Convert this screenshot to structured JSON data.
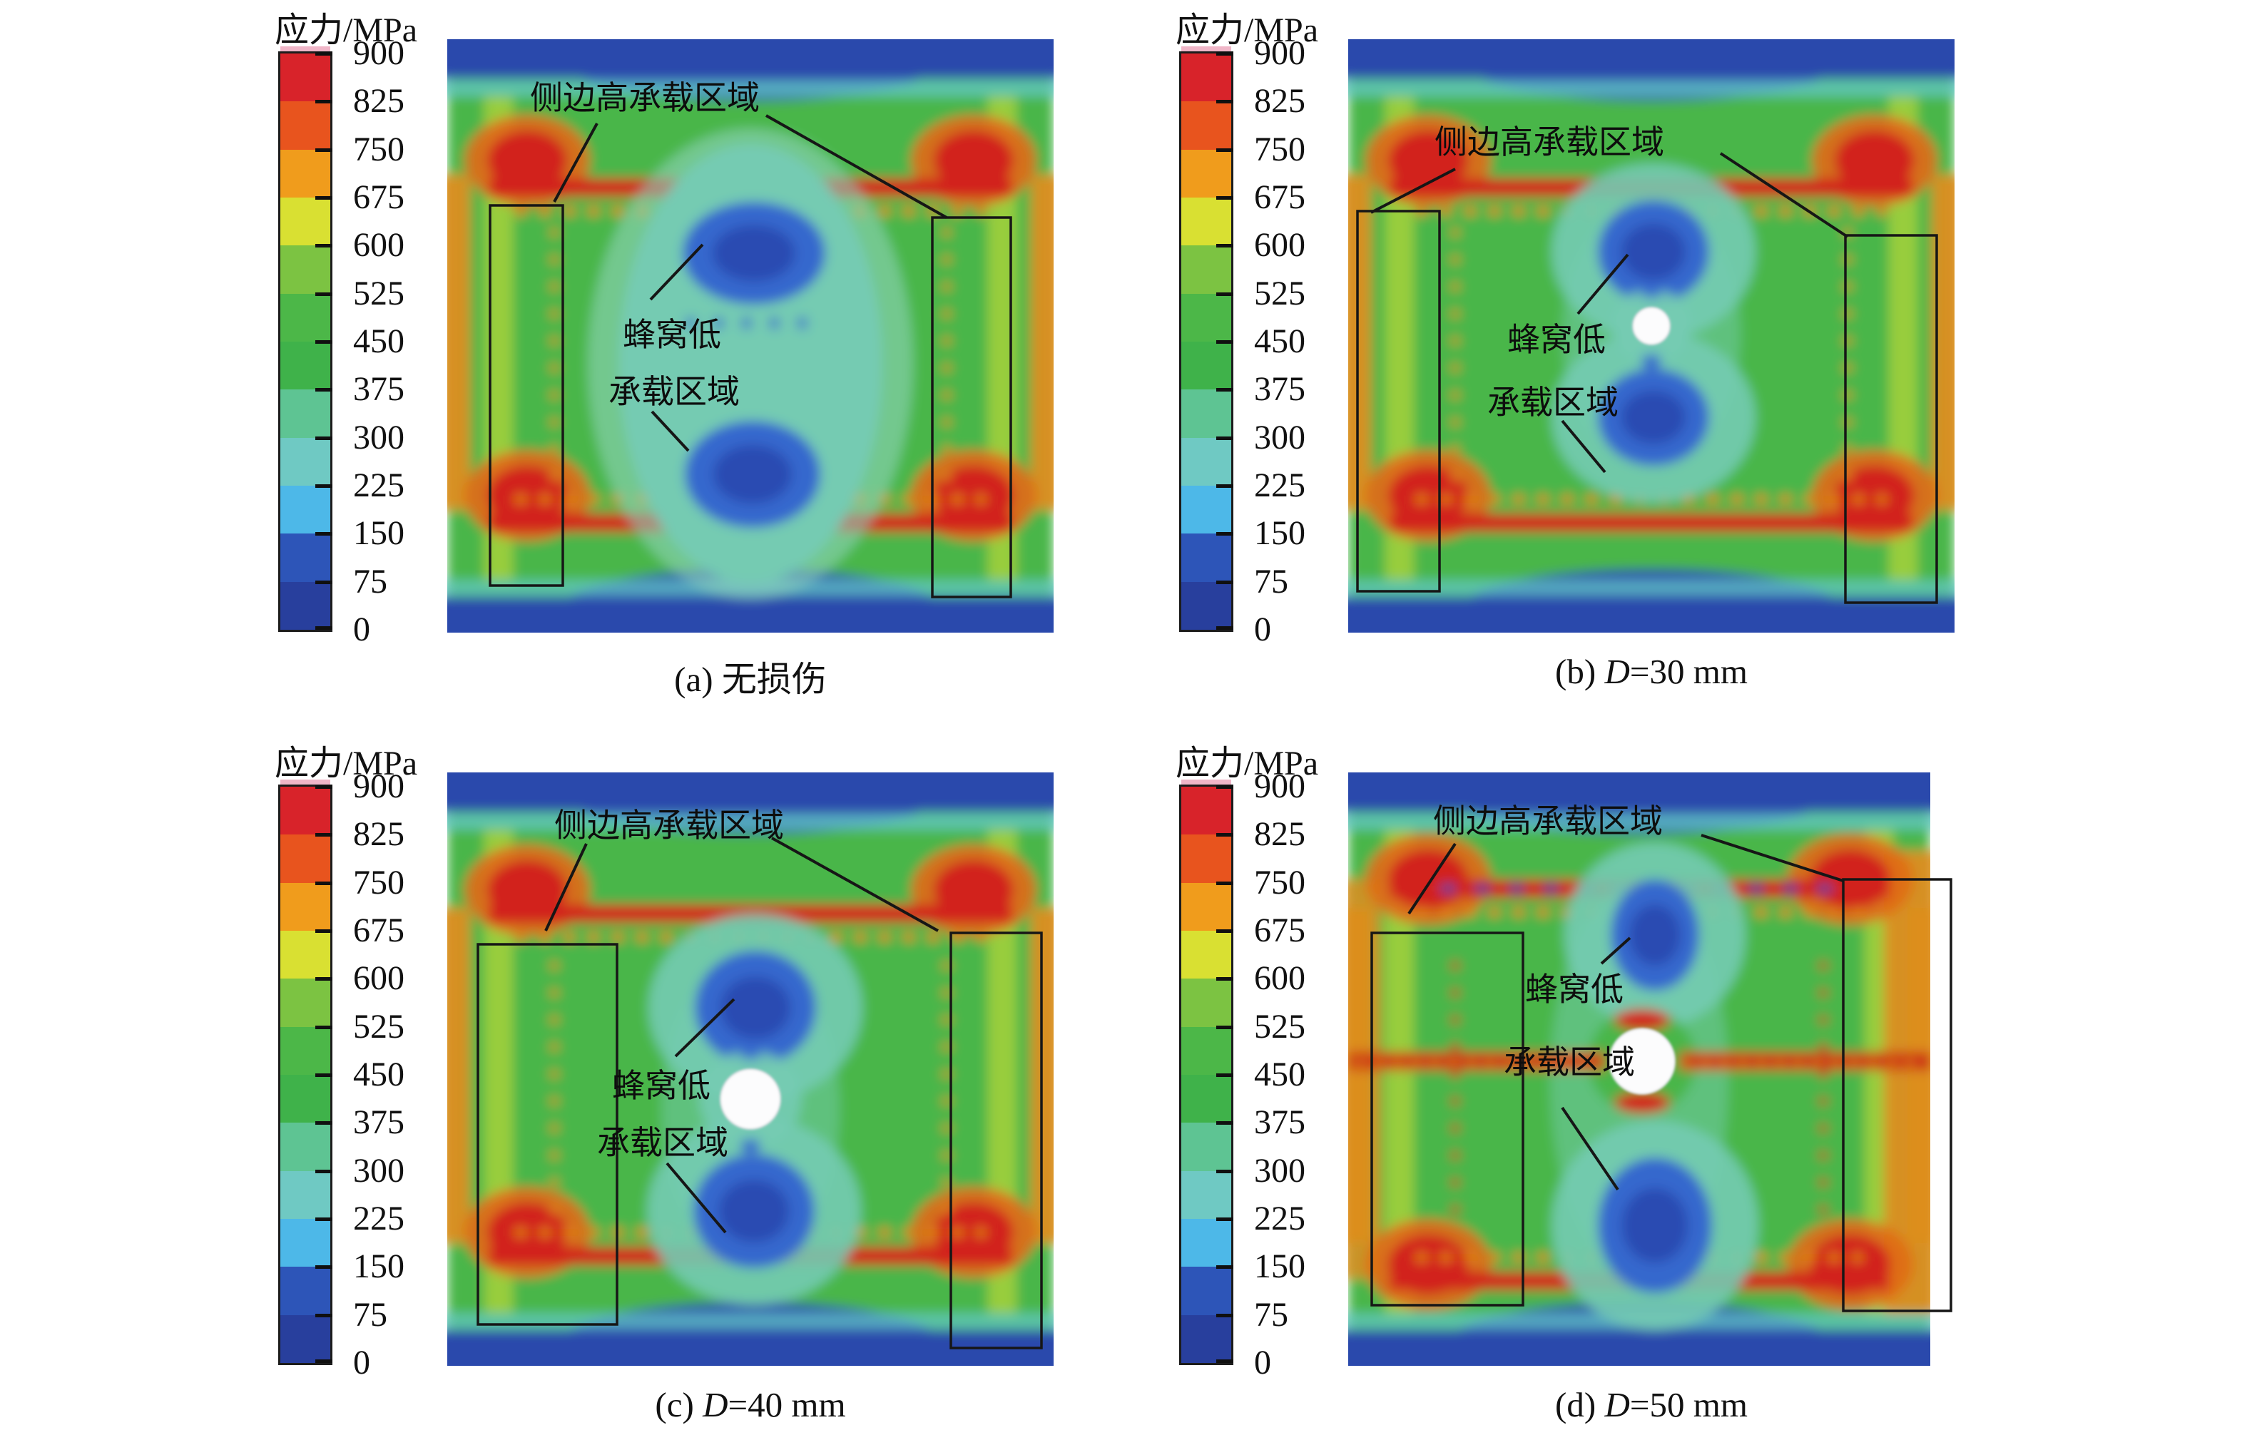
{
  "legend": {
    "title": "应力/MPa",
    "labels": [
      "900",
      "825",
      "750",
      "675",
      "600",
      "525",
      "450",
      "375",
      "300",
      "225",
      "150",
      "75",
      "0"
    ],
    "colors": [
      "#d8232a",
      "#e8541e",
      "#f09c1c",
      "#d9e032",
      "#7cc342",
      "#4cb748",
      "#3fb24a",
      "#5ec493",
      "#6fc9c3",
      "#4db8e8",
      "#2d55b8",
      "#283f9d"
    ]
  },
  "panels": [
    {
      "id": "a",
      "caption": {
        "prefix": "(a) ",
        "var": "",
        "rest": "无损伤"
      },
      "annotations": {
        "side": "侧边高承载区域",
        "center1": "蜂窝低",
        "center2": "承载区域"
      },
      "hole_diameter_mm": null
    },
    {
      "id": "b",
      "caption": {
        "prefix": "(b) ",
        "var": "D",
        "rest": "=30 mm"
      },
      "annotations": {
        "side": "侧边高承载区域",
        "center1": "蜂窝低",
        "center2": "承载区域"
      },
      "hole_diameter_mm": 30
    },
    {
      "id": "c",
      "caption": {
        "prefix": "(c) ",
        "var": "D",
        "rest": "=40 mm"
      },
      "annotations": {
        "side": "侧边高承载区域",
        "center1": "蜂窝低",
        "center2": "承载区域"
      },
      "hole_diameter_mm": 40
    },
    {
      "id": "d",
      "caption": {
        "prefix": "(d) ",
        "var": "D",
        "rest": "=50 mm"
      },
      "annotations": {
        "side": "侧边高承载区域",
        "center1": "蜂窝低",
        "center2": "承载区域"
      },
      "hole_diameter_mm": 50
    }
  ],
  "chart_data": {
    "type": "heatmap",
    "unit": "MPa",
    "colorbar": {
      "title": "应力/MPa",
      "min": 0,
      "max": 900,
      "interval": 75,
      "ticks": [
        900,
        825,
        750,
        675,
        600,
        525,
        450,
        375,
        300,
        225,
        150,
        75,
        0
      ],
      "band_colors_top_to_bottom": [
        "#d8232a",
        "#e8541e",
        "#f09c1c",
        "#d9e032",
        "#7cc342",
        "#4cb748",
        "#3fb24a",
        "#5ec493",
        "#6fc9c3",
        "#4db8e8",
        "#2d55b8",
        "#283f9d"
      ],
      "position": "left-of-each-panel"
    },
    "panels": [
      {
        "label": "(a) 无损伤",
        "damage_hole_diameter_mm": 0,
        "annotations": [
          "侧边高承载区域",
          "蜂窝低 承载区域"
        ],
        "features": "high-stress red bands along upper/lower side edges and four corner hot spots; central teal/blue low-stress honeycomb column; two black rectangles mark side high-load regions"
      },
      {
        "label": "(b) D=30 mm",
        "damage_hole_diameter_mm": 30,
        "annotations": [
          "侧边高承载区域",
          "蜂窝低 承载区域"
        ],
        "features": "small white circular damage hole at center; blue low-stress lobes above and below hole"
      },
      {
        "label": "(c) D=40 mm",
        "damage_hole_diameter_mm": 40,
        "annotations": [
          "侧边高承载区域",
          "蜂窝低 承载区域"
        ],
        "features": "medium white hole; stronger blue lobes above/below; wider side rectangles"
      },
      {
        "label": "(d) D=50 mm",
        "damage_hole_diameter_mm": 50,
        "annotations": [
          "侧边高承载区域",
          "蜂窝低 承载区域"
        ],
        "features": "large white hole with red stress concentration ring and horizontal red high-stress band through hole level; right rectangle extends past plot edge"
      }
    ]
  }
}
